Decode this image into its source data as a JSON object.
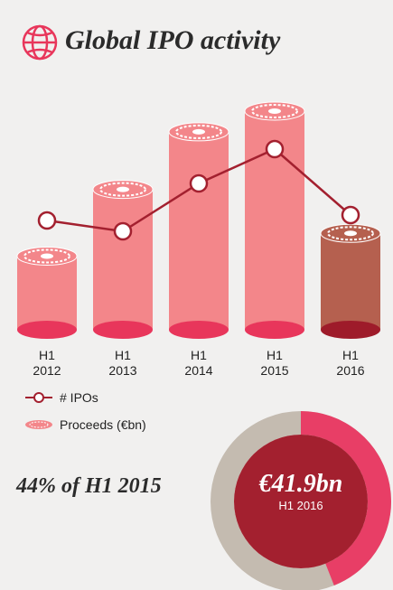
{
  "chart_data": {
    "type": "bar",
    "title": "Global IPO activity",
    "categories": [
      "H1\n2012",
      "H1\n2013",
      "H1\n2014",
      "H1\n2015",
      "H1\n2016"
    ],
    "series": [
      {
        "name": "Proceeds (€bn)",
        "type": "bar",
        "colors": [
          "#f3868a",
          "#f3868a",
          "#f3868a",
          "#f3868a",
          "#b5604f"
        ],
        "base_colors": [
          "#e8365b",
          "#e8365b",
          "#e8365b",
          "#e8365b",
          "#9e1b2a"
        ],
        "values": [
          32,
          61,
          86,
          95,
          41.9
        ]
      },
      {
        "name": "# IPOs",
        "type": "line",
        "color": "#a3202f",
        "values": [
          121,
          109,
          162,
          200,
          127
        ]
      }
    ],
    "donut": {
      "percent": 44,
      "percent_label": "44% of H1 2015",
      "amount_label": "€41.9bn",
      "period": "H1 2016",
      "color": "#e83e66",
      "track_color": "#c4bbb0",
      "center_color": "#a3202f"
    }
  }
}
